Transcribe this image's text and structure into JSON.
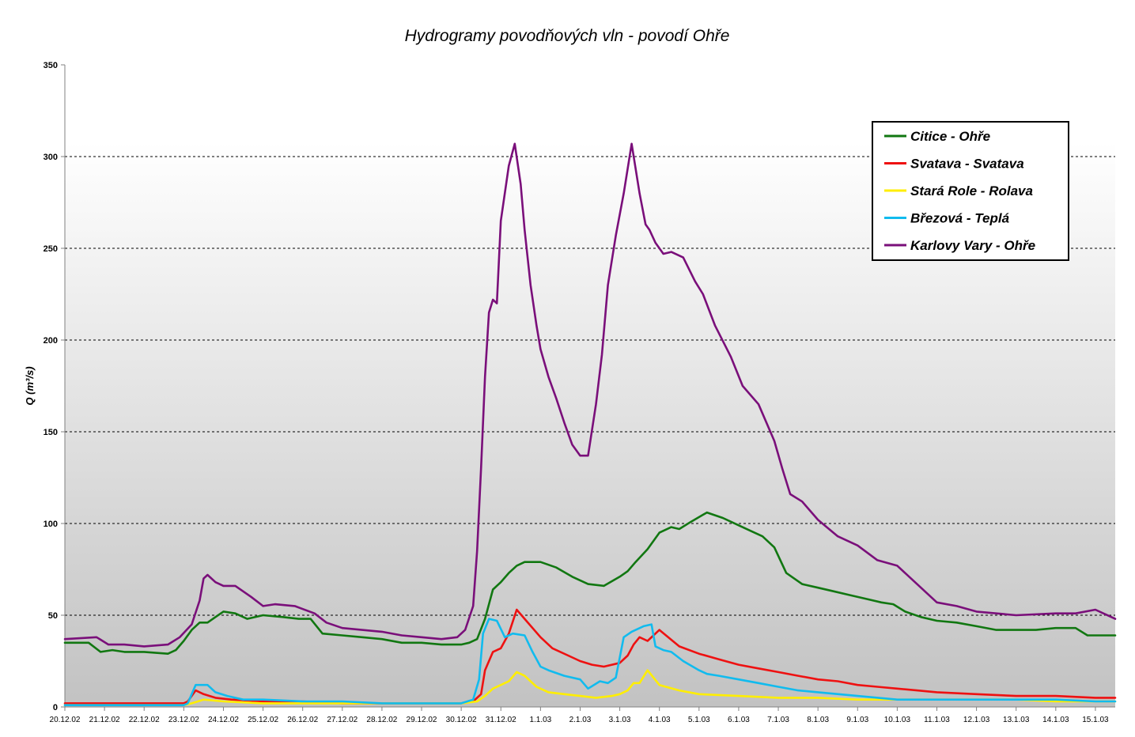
{
  "chart_data": {
    "type": "line",
    "title": "Hydrogramy povodňových vln - povodí Ohře",
    "ylabel": "Q (m³/s)",
    "xlabel": "",
    "ylim": [
      0,
      350
    ],
    "yticks": [
      0,
      50,
      100,
      150,
      200,
      250,
      300,
      350
    ],
    "xlim": [
      0,
      26.5
    ],
    "xtick_labels": [
      "20.12.02",
      "21.12.02",
      "22.12.02",
      "23.12.02",
      "24.12.02",
      "25.12.02",
      "26.12.02",
      "27.12.02",
      "28.12.02",
      "29.12.02",
      "30.12.02",
      "31.12.02",
      "1.1.03",
      "2.1.03",
      "3.1.03",
      "4.1.03",
      "5.1.03",
      "6.1.03",
      "7.1.03",
      "8.1.03",
      "9.1.03",
      "10.1.03",
      "11.1.03",
      "12.1.03",
      "13.1.03",
      "14.1.03",
      "15.1.03"
    ],
    "grid": "horizontal-dashed",
    "background": "gradient-white-to-gray",
    "legend_position": "top-right",
    "series": [
      {
        "name": "Citice - Ohře",
        "color": "#117711",
        "x": [
          0,
          0.6,
          0.9,
          1.2,
          1.5,
          2,
          2.6,
          2.8,
          3,
          3.2,
          3.4,
          3.6,
          3.8,
          4,
          4.3,
          4.6,
          5,
          5.5,
          5.9,
          6.2,
          6.5,
          7,
          7.5,
          8,
          8.5,
          9,
          9.5,
          10,
          10.2,
          10.4,
          10.6,
          10.8,
          11,
          11.2,
          11.4,
          11.6,
          12,
          12.4,
          12.8,
          13.2,
          13.6,
          14,
          14.2,
          14.4,
          14.7,
          15,
          15.3,
          15.5,
          15.8,
          16.2,
          16.6,
          17,
          17.3,
          17.6,
          17.9,
          18.2,
          18.6,
          19,
          19.4,
          19.8,
          20.2,
          20.6,
          20.9,
          21.2,
          21.6,
          22,
          22.5,
          23,
          23.5,
          24,
          24.5,
          25,
          25.5,
          25.8,
          26,
          26.5
        ],
        "y": [
          35,
          35,
          30,
          31,
          30,
          30,
          29,
          31,
          36,
          42,
          46,
          46,
          49,
          52,
          51,
          48,
          50,
          49,
          48,
          48,
          40,
          39,
          38,
          37,
          35,
          35,
          34,
          34,
          35,
          37,
          48,
          64,
          68,
          73,
          77,
          79,
          79,
          76,
          71,
          67,
          66,
          71,
          74,
          79,
          86,
          95,
          98,
          97,
          101,
          106,
          103,
          99,
          96,
          93,
          87,
          73,
          67,
          65,
          63,
          61,
          59,
          57,
          56,
          52,
          49,
          47,
          46,
          44,
          42,
          42,
          42,
          43,
          43,
          39,
          39,
          39
        ]
      },
      {
        "name": "Svatava - Svatava",
        "color": "#ee1111",
        "x": [
          0,
          1,
          2,
          3,
          3.1,
          3.3,
          3.5,
          3.8,
          4.2,
          5,
          6,
          7,
          8,
          9,
          10,
          10.3,
          10.5,
          10.6,
          10.8,
          11,
          11.2,
          11.4,
          11.6,
          12,
          12.3,
          12.7,
          13,
          13.3,
          13.6,
          14,
          14.2,
          14.35,
          14.5,
          14.7,
          15,
          15.5,
          16,
          16.5,
          17,
          17.5,
          18,
          18.5,
          19,
          19.5,
          20,
          20.5,
          21,
          21.5,
          22,
          23,
          24,
          25,
          26,
          26.5
        ],
        "y": [
          2,
          2,
          2,
          2,
          3,
          9,
          7,
          5,
          4,
          3,
          3,
          2,
          2,
          2,
          2,
          3,
          7,
          20,
          30,
          32,
          40,
          53,
          48,
          38,
          32,
          28,
          25,
          23,
          22,
          24,
          28,
          34,
          38,
          36,
          42,
          33,
          29,
          26,
          23,
          21,
          19,
          17,
          15,
          14,
          12,
          11,
          10,
          9,
          8,
          7,
          6,
          6,
          5,
          5
        ]
      },
      {
        "name": "Stará Role - Rolava",
        "color": "#ffee00",
        "x": [
          0,
          1,
          2,
          3,
          3.2,
          3.5,
          4,
          5,
          6,
          7,
          8,
          9,
          10,
          10.4,
          10.6,
          10.8,
          11,
          11.2,
          11.4,
          11.6,
          11.9,
          12.2,
          12.6,
          13,
          13.4,
          13.8,
          14,
          14.2,
          14.35,
          14.5,
          14.7,
          15,
          15.5,
          16,
          17,
          18,
          19,
          20,
          21,
          22,
          23,
          24,
          25,
          26,
          26.5
        ],
        "y": [
          1,
          1,
          1,
          1,
          2,
          4,
          3,
          2,
          2,
          2,
          2,
          2,
          2,
          3,
          6,
          10,
          12,
          14,
          19,
          17,
          11,
          8,
          7,
          6,
          5,
          6,
          7,
          9,
          13,
          13,
          20,
          12,
          9,
          7,
          6,
          5,
          5,
          4,
          4,
          4,
          4,
          4,
          3,
          3,
          3
        ]
      },
      {
        "name": "Březová - Teplá",
        "color": "#11bbee",
        "x": [
          0,
          1,
          2,
          3,
          3.1,
          3.3,
          3.6,
          3.8,
          4.1,
          4.5,
          5,
          6,
          7,
          8,
          9,
          10,
          10.3,
          10.45,
          10.55,
          10.7,
          10.9,
          11.1,
          11.3,
          11.6,
          11.8,
          12,
          12.2,
          12.6,
          13,
          13.2,
          13.5,
          13.7,
          13.9,
          14.1,
          14.3,
          14.6,
          14.8,
          14.9,
          15.1,
          15.3,
          15.6,
          16,
          16.2,
          16.5,
          17,
          17.5,
          18,
          18.5,
          19,
          20,
          21,
          22,
          23,
          24,
          25,
          26,
          26.5
        ],
        "y": [
          1,
          1,
          1,
          1,
          2,
          12,
          12,
          8,
          6,
          4,
          4,
          3,
          3,
          2,
          2,
          2,
          4,
          15,
          40,
          48,
          47,
          38,
          40,
          39,
          30,
          22,
          20,
          17,
          15,
          10,
          14,
          13,
          16,
          38,
          41,
          44,
          45,
          33,
          31,
          30,
          25,
          20,
          18,
          17,
          15,
          13,
          11,
          9,
          8,
          6,
          4,
          4,
          4,
          4,
          4,
          3,
          3
        ]
      },
      {
        "name": "Karlovy Vary - Ohře",
        "color": "#7a0f7a",
        "x": [
          0,
          0.8,
          1.1,
          1.5,
          2,
          2.6,
          2.9,
          3.2,
          3.4,
          3.5,
          3.6,
          3.8,
          4,
          4.3,
          4.7,
          5,
          5.3,
          5.8,
          6.3,
          6.6,
          7,
          7.5,
          8,
          8.5,
          9,
          9.5,
          9.9,
          10.1,
          10.3,
          10.4,
          10.5,
          10.6,
          10.7,
          10.8,
          10.9,
          11.0,
          11.2,
          11.35,
          11.5,
          11.6,
          11.75,
          11.9,
          12,
          12.2,
          12.4,
          12.6,
          12.8,
          13,
          13.2,
          13.4,
          13.55,
          13.7,
          13.9,
          14.1,
          14.3,
          14.5,
          14.65,
          14.75,
          14.9,
          15.1,
          15.3,
          15.6,
          15.9,
          16.1,
          16.4,
          16.8,
          17.1,
          17.5,
          17.9,
          18.1,
          18.3,
          18.6,
          19,
          19.5,
          20,
          20.5,
          21,
          21.5,
          22,
          22.5,
          23,
          24,
          25,
          25.5,
          26,
          26.5
        ],
        "y": [
          37,
          38,
          34,
          34,
          33,
          34,
          38,
          45,
          58,
          70,
          72,
          68,
          66,
          66,
          60,
          55,
          56,
          55,
          51,
          46,
          43,
          42,
          41,
          39,
          38,
          37,
          38,
          42,
          55,
          85,
          130,
          180,
          215,
          222,
          220,
          265,
          295,
          307,
          285,
          260,
          230,
          208,
          195,
          180,
          168,
          155,
          143,
          137,
          137,
          165,
          192,
          230,
          257,
          280,
          307,
          280,
          263,
          260,
          253,
          247,
          248,
          245,
          232,
          225,
          208,
          191,
          175,
          165,
          145,
          130,
          116,
          112,
          102,
          93,
          88,
          80,
          77,
          67,
          57,
          55,
          52,
          50,
          51,
          51,
          53,
          48
        ]
      }
    ]
  }
}
